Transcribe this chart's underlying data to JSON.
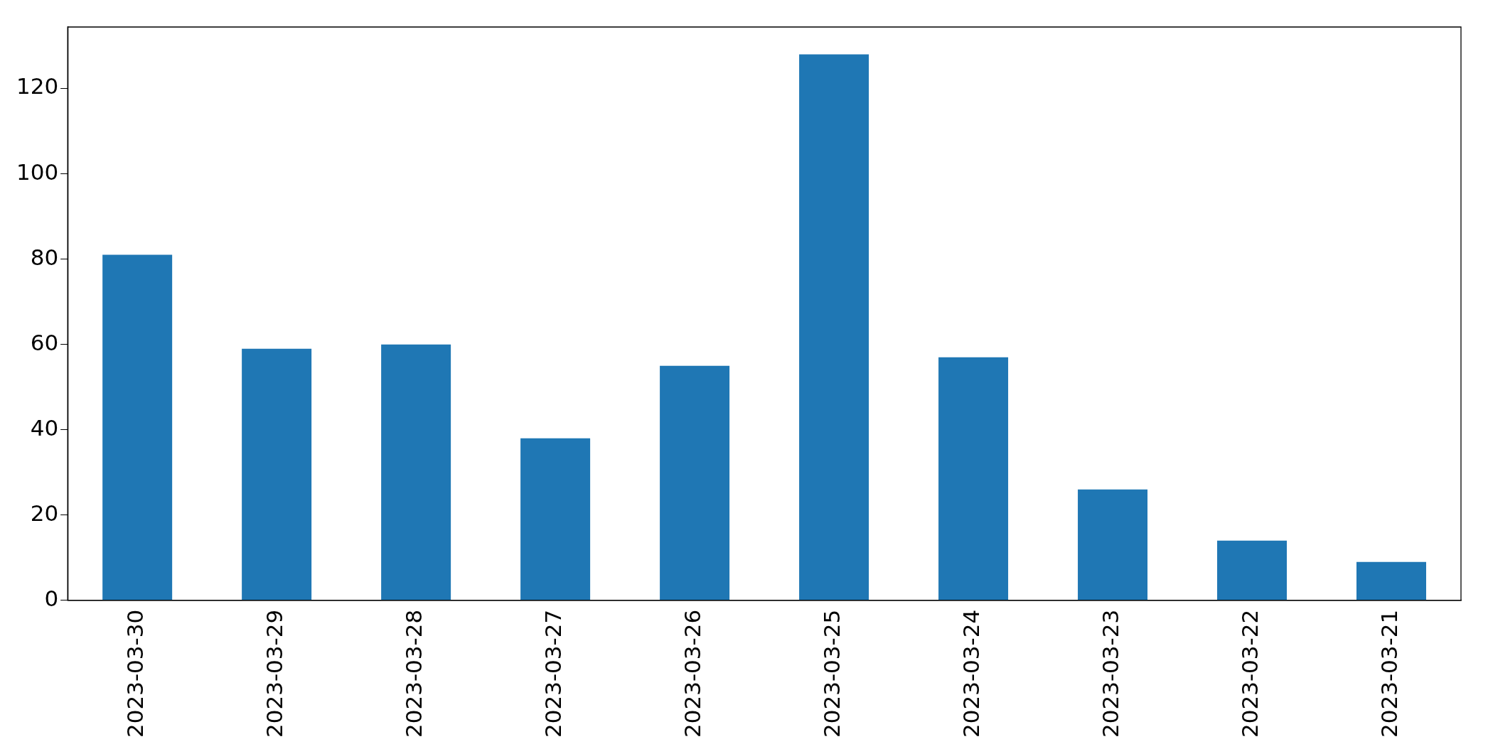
{
  "chart_data": {
    "type": "bar",
    "categories": [
      "2023-03-30",
      "2023-03-29",
      "2023-03-28",
      "2023-03-27",
      "2023-03-26",
      "2023-03-25",
      "2023-03-24",
      "2023-03-23",
      "2023-03-22",
      "2023-03-21"
    ],
    "values": [
      81,
      59,
      60,
      38,
      55,
      128,
      57,
      26,
      14,
      9
    ],
    "color": "#1f77b4",
    "ylim": [
      0,
      134.4
    ],
    "yticks": [
      0,
      20,
      40,
      60,
      80,
      100,
      120
    ],
    "grid": false,
    "legend": false
  }
}
